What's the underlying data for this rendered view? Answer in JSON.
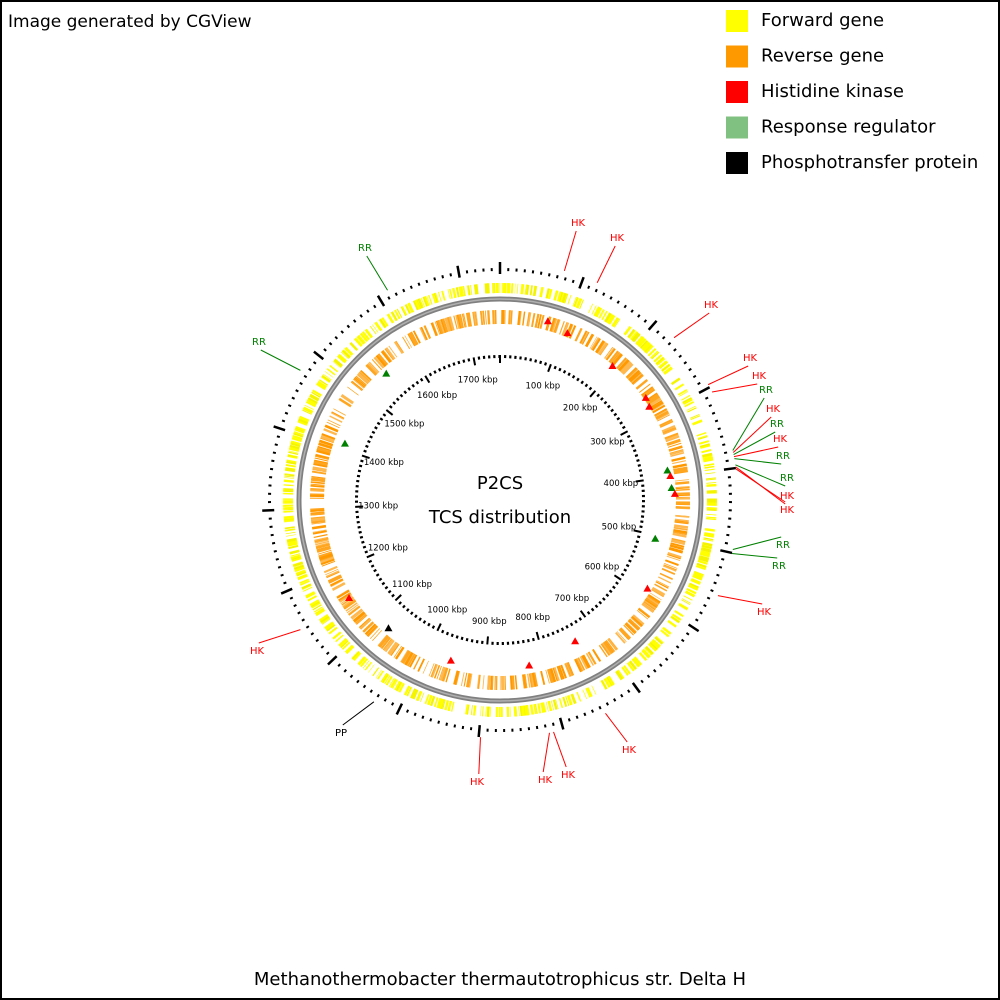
{
  "header": {
    "credit": "Image generated by CGView"
  },
  "legend": [
    {
      "label": "Forward gene",
      "color": "#ffff00"
    },
    {
      "label": "Reverse gene",
      "color": "#ff9900"
    },
    {
      "label": "Histidine kinase",
      "color": "#ff0000"
    },
    {
      "label": "Response regulator",
      "color": "#80c080"
    },
    {
      "label": "Phosphotransfer protein",
      "color": "#000000"
    }
  ],
  "center": {
    "line1": "P2CS",
    "line2": "TCS distribution"
  },
  "ruler": [
    "100 kbp",
    "200 kbp",
    "300 kbp",
    "400 kbp",
    "500 kbp",
    "600 kbp",
    "700 kbp",
    "800 kbp",
    "900 kbp",
    "1000 kbp",
    "1100 kbp",
    "1200 kbp",
    "1300 kbp",
    "1400 kbp",
    "1500 kbp",
    "1600 kbp",
    "1700 kbp"
  ],
  "features": [
    "RR",
    "RR",
    "HK",
    "HK",
    "HK",
    "HK",
    "HK",
    "RR",
    "HK",
    "RR",
    "HK",
    "RR",
    "RR",
    "HK",
    "HK",
    "RR",
    "RR",
    "HK",
    "HK",
    "PP",
    "HK",
    "HK",
    "HK",
    "HK"
  ],
  "footer": {
    "organism": "Methanothermobacter thermautotrophicus str. Delta H"
  }
}
